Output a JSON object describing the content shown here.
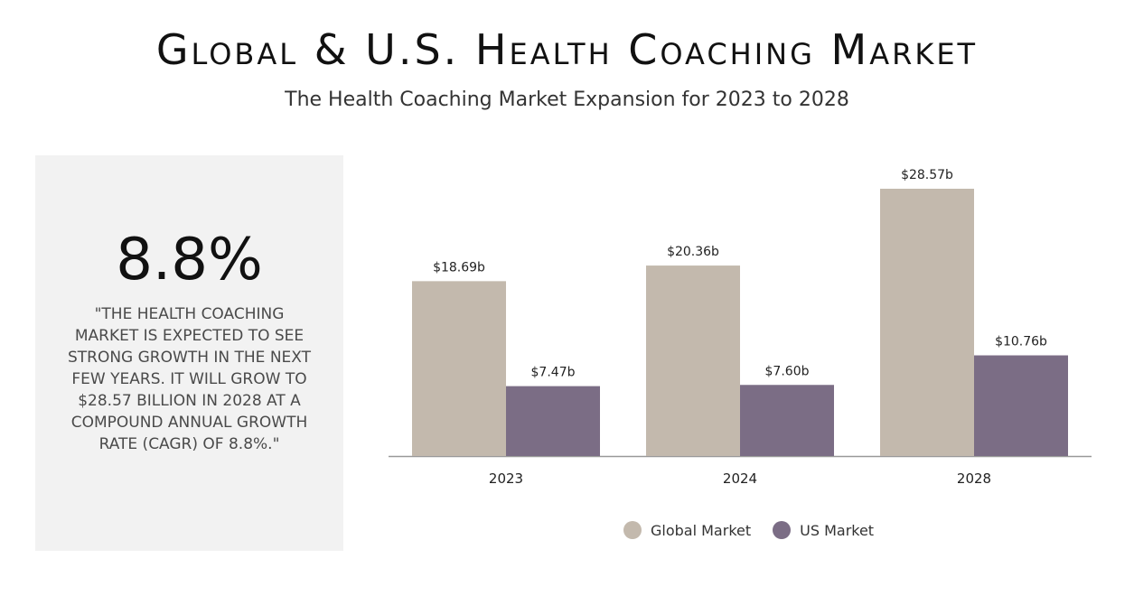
{
  "header": {
    "title": "Global & U.S. Health Coaching Market",
    "subtitle": "The Health Coaching Market Expansion for 2023 to 2028"
  },
  "stat": {
    "value": "8.8%",
    "quote": "\"The health coaching market is expected to see strong growth in the next few years. It will grow to $28.57 billion in 2028 at a compound annual growth rate (CAGR) of 8.8%.\""
  },
  "colors": {
    "global": "#c3b9ad",
    "us": "#7b6d85",
    "axis": "#999999"
  },
  "chart_data": {
    "type": "bar",
    "title": "",
    "xlabel": "",
    "ylabel": "",
    "ylim": [
      0,
      32
    ],
    "grid": false,
    "legend_position": "bottom",
    "categories": [
      "2023",
      "2024",
      "2028"
    ],
    "series": [
      {
        "name": "Global Market",
        "values": [
          18.69,
          20.36,
          28.57
        ],
        "labels": [
          "$18.69b",
          "$20.36b",
          "$28.57b"
        ]
      },
      {
        "name": "US Market",
        "values": [
          7.47,
          7.6,
          10.76
        ],
        "labels": [
          "$7.47b",
          "$7.60b",
          "$10.76b"
        ]
      }
    ]
  }
}
